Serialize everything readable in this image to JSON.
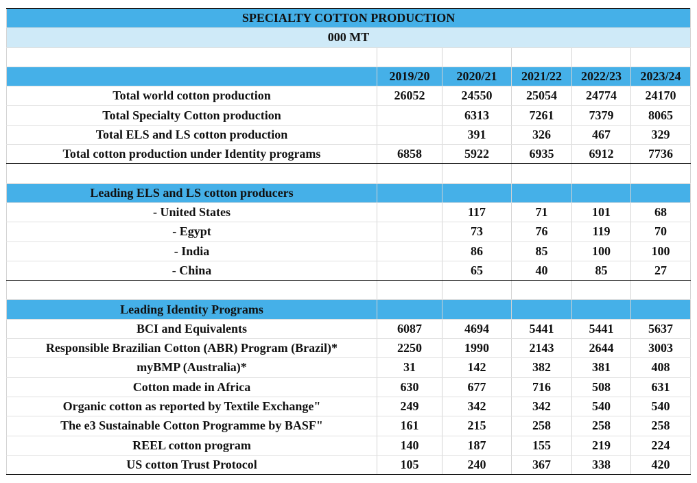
{
  "title": "SPECIALTY COTTON PRODUCTION",
  "subtitle": "000 MT",
  "columns": [
    "2019/20",
    "2020/21",
    "2021/22",
    "2022/23",
    "2023/24"
  ],
  "sections": [
    {
      "rows": [
        {
          "label": "Total world cotton production",
          "values": [
            26052,
            24550,
            25054,
            24774,
            24170
          ]
        },
        {
          "label": "Total Specialty Cotton production",
          "values": [
            null,
            6313,
            7261,
            7379,
            8065
          ]
        },
        {
          "label": "Total ELS and LS cotton production",
          "values": [
            null,
            391,
            326,
            467,
            329
          ]
        },
        {
          "label": "Total cotton production under Identity programs",
          "values": [
            6858,
            5922,
            6935,
            6912,
            7736
          ]
        }
      ]
    },
    {
      "heading": "Leading ELS and LS cotton producers",
      "rows": [
        {
          "label": "- United States",
          "values": [
            null,
            117,
            71,
            101,
            68
          ]
        },
        {
          "label": "- Egypt",
          "values": [
            null,
            73,
            76,
            119,
            70
          ]
        },
        {
          "label": "- India",
          "values": [
            null,
            86,
            85,
            100,
            100
          ]
        },
        {
          "label": "- China",
          "values": [
            null,
            65,
            40,
            85,
            27
          ]
        }
      ]
    },
    {
      "heading": "Leading Identity Programs",
      "rows": [
        {
          "label": "BCI and Equivalents",
          "values": [
            6087,
            4694,
            5441,
            5441,
            5637
          ]
        },
        {
          "label": "Responsible Brazilian Cotton (ABR) Program (Brazil)*",
          "values": [
            2250,
            1990,
            2143,
            2644,
            3003
          ]
        },
        {
          "label": "myBMP (Australia)*",
          "values": [
            31,
            142,
            382,
            381,
            408
          ]
        },
        {
          "label": "Cotton made in Africa",
          "values": [
            630,
            677,
            716,
            508,
            631
          ]
        },
        {
          "label": "Organic cotton as reported by Textile Exchange\"",
          "values": [
            249,
            342,
            342,
            540,
            540
          ]
        },
        {
          "label": "The e3 Sustainable Cotton Programme by BASF\"",
          "values": [
            161,
            215,
            258,
            258,
            258
          ]
        },
        {
          "label": "REEL cotton program",
          "values": [
            140,
            187,
            155,
            219,
            224
          ]
        },
        {
          "label": "US cotton Trust Protocol",
          "values": [
            105,
            240,
            367,
            338,
            420
          ]
        }
      ]
    }
  ]
}
